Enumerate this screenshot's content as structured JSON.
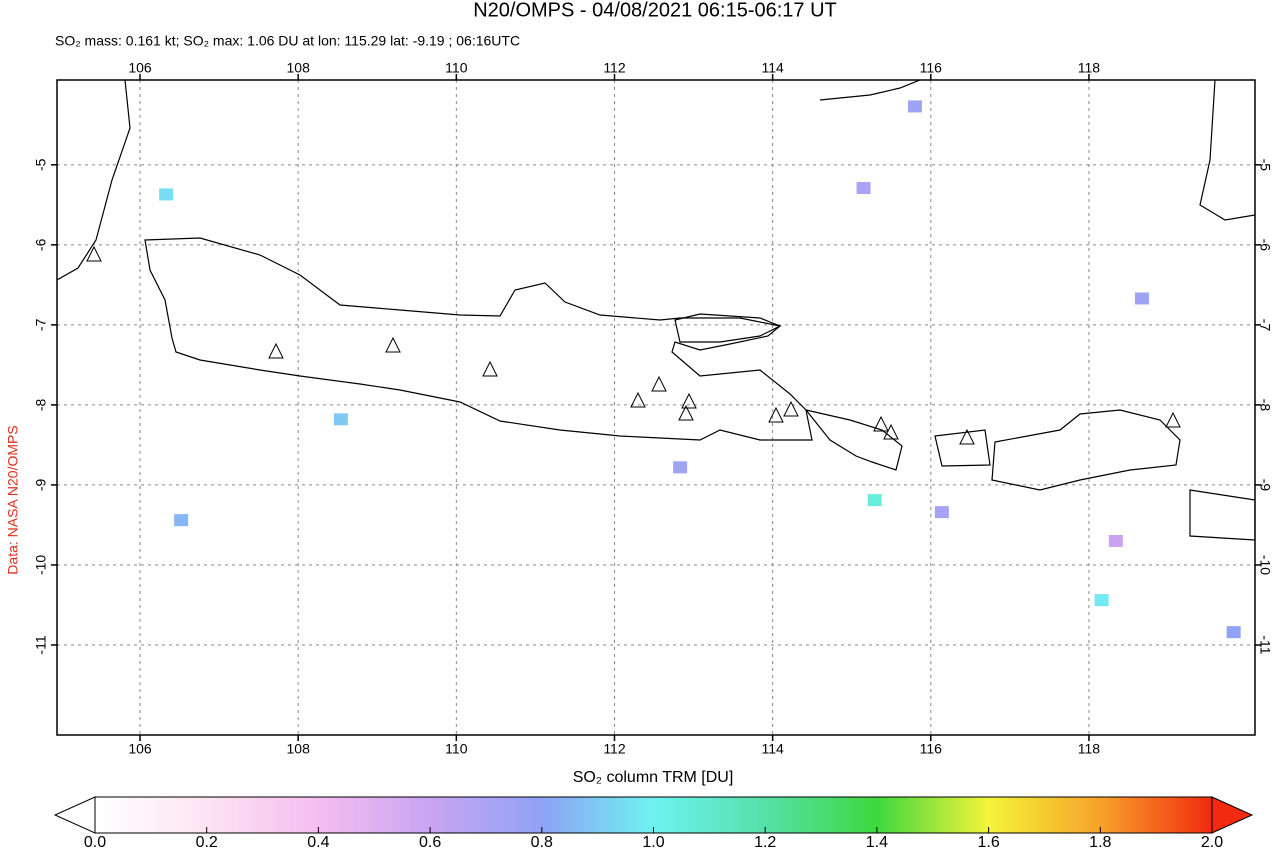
{
  "map": {
    "title": "N20/OMPS - 04/08/2021 06:15-06:17 UT",
    "subtitle": "SO₂ mass: 0.161 kt; SO₂ max: 1.06 DU at lon: 115.29 lat: -9.19 ; 06:16UTC",
    "credit": "Data: NASA N20/OMPS",
    "lonlim": [
      104.95,
      120.1
    ],
    "latlim": [
      -12.125,
      -3.94
    ],
    "lonticks": [
      106,
      108,
      110,
      112,
      114,
      116,
      118
    ],
    "latticks": [
      -5,
      -6,
      -7,
      -8,
      -9,
      -10,
      -11
    ],
    "grid": true,
    "cells": [
      {
        "lon": 115.29,
        "lat": -9.19,
        "value": 1.06
      },
      {
        "lon": 118.16,
        "lat": -10.44,
        "value": 0.98
      },
      {
        "lon": 119.83,
        "lat": -10.84,
        "value": 0.8
      },
      {
        "lon": 118.67,
        "lat": -6.67,
        "value": 0.75
      },
      {
        "lon": 115.8,
        "lat": -4.27,
        "value": 0.75
      },
      {
        "lon": 106.33,
        "lat": -5.37,
        "value": 0.95
      },
      {
        "lon": 108.54,
        "lat": -8.18,
        "value": 0.9
      },
      {
        "lon": 106.52,
        "lat": -9.44,
        "value": 0.85
      },
      {
        "lon": 115.15,
        "lat": -5.29,
        "value": 0.7
      },
      {
        "lon": 118.34,
        "lat": -9.7,
        "value": 0.6
      },
      {
        "lon": 112.83,
        "lat": -8.78,
        "value": 0.75
      },
      {
        "lon": 116.14,
        "lat": -9.34,
        "value": 0.72
      }
    ],
    "colorbar": {
      "label": "SO₂ column TRM [DU]",
      "lim": [
        0,
        2
      ],
      "ticks": [
        {
          "value": 0,
          "label": "0.0"
        },
        {
          "value": 0.2,
          "label": "0.2"
        },
        {
          "value": 0.4,
          "label": "0.4"
        },
        {
          "value": 0.6,
          "label": "0.6"
        },
        {
          "value": 0.8,
          "label": "0.8"
        },
        {
          "value": 1,
          "label": "1.0"
        },
        {
          "value": 1.2,
          "label": "1.2"
        },
        {
          "value": 1.4,
          "label": "1.4"
        },
        {
          "value": 1.6,
          "label": "1.6"
        },
        {
          "value": 1.8,
          "label": "1.8"
        },
        {
          "value": 2,
          "label": "2.0"
        }
      ]
    }
  }
}
